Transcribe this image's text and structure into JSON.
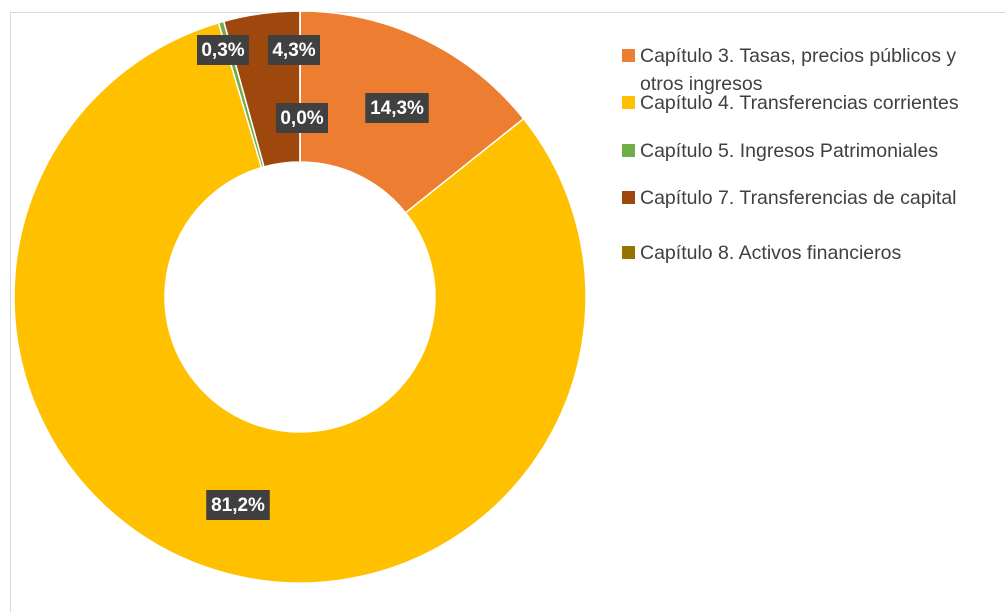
{
  "chart_data": {
    "type": "donut",
    "categories": [
      "Capítulo 3. Tasas, precios públicos y otros ingresos",
      "Capítulo 4. Transferencias corrientes",
      "Capítulo 5. Ingresos Patrimoniales",
      "Capítulo 7. Transferencias de capital",
      "Capítulo 8. Activos financieros"
    ],
    "values": [
      14.3,
      81.2,
      0.3,
      4.3,
      0.0
    ],
    "value_labels": [
      "14,3%",
      "81,2%",
      "0,3%",
      "4,3%",
      "0,0%"
    ],
    "colors": [
      "#ED7D31",
      "#FFC000",
      "#70AD47",
      "#9E480E",
      "#997300"
    ],
    "legend": "right"
  }
}
